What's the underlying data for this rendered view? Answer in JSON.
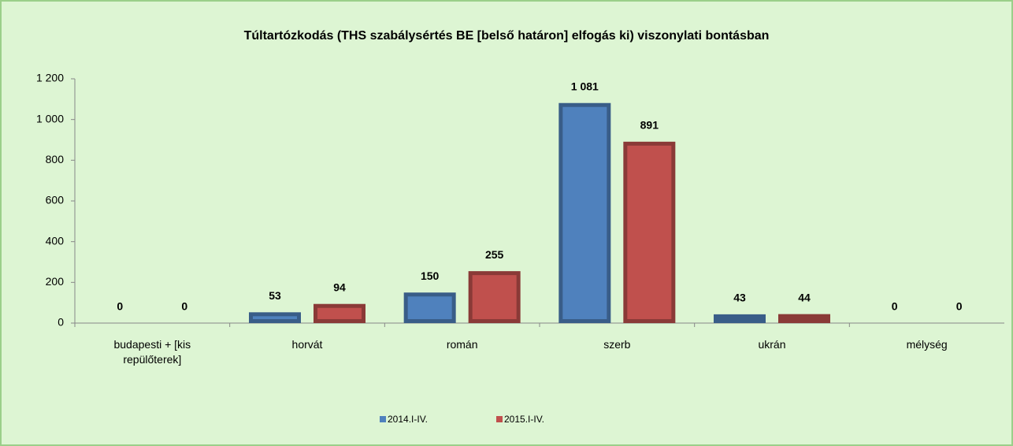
{
  "chart_data": {
    "type": "bar",
    "title": "Túltartózkodás (THS szabálysértés BE [belső határon] elfogás ki) viszonylati bontásban",
    "categories": [
      "budapesti + [kis repülőterek]",
      "horvát",
      "román",
      "szerb",
      "ukrán",
      "mélység"
    ],
    "series": [
      {
        "name": "2014.I-IV.",
        "color": "#4f81bd",
        "values": [
          0,
          53,
          150,
          1081,
          43,
          0
        ],
        "value_labels": [
          "0",
          "53",
          "150",
          "1 081",
          "43",
          "0"
        ]
      },
      {
        "name": "2015.I-IV.",
        "color": "#c0504d",
        "values": [
          0,
          94,
          255,
          891,
          44,
          0
        ],
        "value_labels": [
          "0",
          "94",
          "255",
          "891",
          "44",
          "0"
        ]
      }
    ],
    "ylim": [
      0,
      1200
    ],
    "yticks": [
      0,
      200,
      400,
      600,
      800,
      {
        "value": 1000,
        "label": "1 000"
      },
      {
        "value": 1200,
        "label": "1 200"
      }
    ],
    "legend": "bottom"
  }
}
